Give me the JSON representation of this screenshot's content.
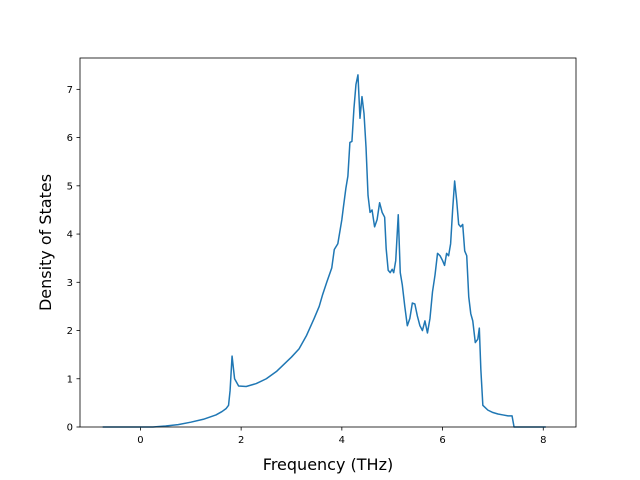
{
  "chart_data": {
    "type": "line",
    "title": "",
    "xlabel": "Frequency (THz)",
    "ylabel": "Density of States",
    "xlim": [
      -1.2,
      8.65
    ],
    "ylim": [
      0,
      7.65
    ],
    "xticks": [
      0,
      2,
      4,
      6,
      8
    ],
    "yticks": [
      0,
      1,
      2,
      3,
      4,
      5,
      6,
      7
    ],
    "grid": false,
    "legend": "none",
    "line_color": "#1f77b4",
    "series": [
      {
        "x": [
          -0.75,
          -0.5,
          -0.25,
          0.0,
          0.25,
          0.5,
          0.75,
          1.0,
          1.25,
          1.5,
          1.62,
          1.7,
          1.75,
          1.78,
          1.82,
          1.87,
          1.95,
          2.1,
          2.3,
          2.5,
          2.7,
          2.85,
          3.0,
          3.15,
          3.3,
          3.45,
          3.55,
          3.62,
          3.7,
          3.8,
          3.85,
          3.92,
          4.0,
          4.03,
          4.08,
          4.12,
          4.16,
          4.2,
          4.24,
          4.28,
          4.32,
          4.36,
          4.4,
          4.44,
          4.48,
          4.52,
          4.56,
          4.6,
          4.65,
          4.7,
          4.75,
          4.8,
          4.85,
          4.88,
          4.92,
          4.96,
          5.0,
          5.03,
          5.07,
          5.12,
          5.16,
          5.2,
          5.25,
          5.3,
          5.35,
          5.4,
          5.45,
          5.5,
          5.55,
          5.6,
          5.65,
          5.7,
          5.75,
          5.8,
          5.85,
          5.9,
          5.95,
          6.0,
          6.04,
          6.08,
          6.12,
          6.16,
          6.2,
          6.24,
          6.28,
          6.32,
          6.36,
          6.4,
          6.44,
          6.48,
          6.52,
          6.56,
          6.6,
          6.65,
          6.7,
          6.73,
          6.76,
          6.8,
          6.9,
          7.0,
          7.1,
          7.2,
          7.3,
          7.35,
          7.38,
          7.42,
          7.5,
          7.7,
          7.9,
          8.05
        ],
        "y": [
          0.0,
          0.0,
          0.0,
          0.0,
          0.0,
          0.02,
          0.05,
          0.1,
          0.16,
          0.25,
          0.32,
          0.38,
          0.45,
          0.75,
          1.47,
          1.0,
          0.85,
          0.84,
          0.9,
          1.0,
          1.15,
          1.3,
          1.45,
          1.62,
          1.9,
          2.25,
          2.5,
          2.75,
          3.0,
          3.3,
          3.68,
          3.8,
          4.3,
          4.55,
          4.95,
          5.2,
          5.9,
          5.92,
          6.6,
          7.1,
          7.3,
          6.4,
          6.85,
          6.5,
          5.8,
          4.8,
          4.45,
          4.5,
          4.15,
          4.3,
          4.65,
          4.45,
          4.35,
          3.7,
          3.25,
          3.2,
          3.27,
          3.2,
          3.45,
          4.4,
          3.2,
          2.95,
          2.5,
          2.1,
          2.25,
          2.57,
          2.55,
          2.3,
          2.1,
          2.0,
          2.2,
          1.95,
          2.25,
          2.8,
          3.15,
          3.6,
          3.55,
          3.45,
          3.35,
          3.6,
          3.55,
          3.8,
          4.5,
          5.1,
          4.7,
          4.2,
          4.15,
          4.2,
          3.65,
          3.55,
          2.7,
          2.35,
          2.2,
          1.75,
          1.82,
          2.05,
          1.2,
          0.45,
          0.35,
          0.3,
          0.27,
          0.25,
          0.23,
          0.23,
          0.23,
          0.0,
          0.0,
          0.0,
          0.0,
          0.0
        ]
      }
    ]
  }
}
